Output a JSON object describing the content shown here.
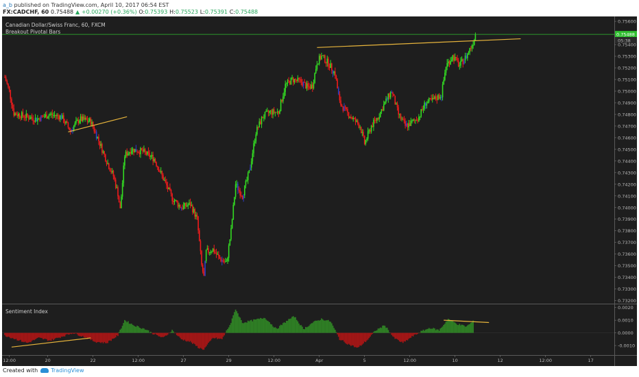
{
  "header": {
    "user": "a_b",
    "published_text": "published on TradingView.com, April 10, 2017 06:54 EST",
    "symbol": "FX:CADCHF, 60",
    "last": "0.75488",
    "change": "+0.00270 (+0.36%)",
    "o_label": "O:",
    "o_value": "0.75393",
    "h_label": "H:",
    "h_value": "0.75523",
    "l_label": "L:",
    "l_value": "0.75391",
    "c_label": "C:",
    "c_value": "0.75488"
  },
  "footer": {
    "created_with": "Created with",
    "brand": "TradingView"
  },
  "colors": {
    "background": "#1e1e1e",
    "bull": "#33dd22",
    "bear": "#ee1c1c",
    "neutral": "#2e3dc8",
    "trendline": "#e8b53c",
    "price_line": "#2fbf2f",
    "hist_pos": "#2e7d24",
    "hist_neg": "#a11616",
    "axis_text": "#b8b8b8"
  },
  "chart_data": [
    {
      "type": "candlestick",
      "title": "Canadian Dollar/Swiss Franc, 60, FXCM",
      "indicator_label": "Breakout Pivotal Bars",
      "ylim": [
        0.7318,
        0.7563
      ],
      "y_ticks": [
        "0.75600",
        "0.75488",
        "0.75400",
        "0.75300",
        "0.75200",
        "0.75100",
        "0.75000",
        "0.74900",
        "0.74800",
        "0.74700",
        "0.74600",
        "0.74500",
        "0.74400",
        "0.74300",
        "0.74200",
        "0.74100",
        "0.74000",
        "0.73900",
        "0.73800",
        "0.73700",
        "0.73600",
        "0.73500",
        "0.73400",
        "0.73300",
        "0.73200"
      ],
      "last_price_tag": "0.75488",
      "countdown_tag": "05:38",
      "current_price": 0.75488,
      "approx_close_path": [
        {
          "t": 0,
          "v": 0.7512
        },
        {
          "t": 2,
          "v": 0.75
        },
        {
          "t": 4,
          "v": 0.7481
        },
        {
          "t": 8,
          "v": 0.7479
        },
        {
          "t": 14,
          "v": 0.7476
        },
        {
          "t": 20,
          "v": 0.748
        },
        {
          "t": 25,
          "v": 0.7478
        },
        {
          "t": 29,
          "v": 0.7466
        },
        {
          "t": 33,
          "v": 0.7476
        },
        {
          "t": 38,
          "v": 0.7474
        },
        {
          "t": 41,
          "v": 0.746
        },
        {
          "t": 45,
          "v": 0.744
        },
        {
          "t": 48,
          "v": 0.7427
        },
        {
          "t": 50,
          "v": 0.7412
        },
        {
          "t": 51,
          "v": 0.7398
        },
        {
          "t": 53,
          "v": 0.7445
        },
        {
          "t": 56,
          "v": 0.745
        },
        {
          "t": 61,
          "v": 0.7448
        },
        {
          "t": 66,
          "v": 0.7442
        },
        {
          "t": 70,
          "v": 0.7425
        },
        {
          "t": 74,
          "v": 0.7408
        },
        {
          "t": 78,
          "v": 0.74
        },
        {
          "t": 82,
          "v": 0.7403
        },
        {
          "t": 85,
          "v": 0.739
        },
        {
          "t": 87,
          "v": 0.735
        },
        {
          "t": 88,
          "v": 0.734
        },
        {
          "t": 89,
          "v": 0.7362
        },
        {
          "t": 92,
          "v": 0.7364
        },
        {
          "t": 95,
          "v": 0.7356
        },
        {
          "t": 98,
          "v": 0.7352
        },
        {
          "t": 100,
          "v": 0.738
        },
        {
          "t": 102,
          "v": 0.742
        },
        {
          "t": 105,
          "v": 0.741
        },
        {
          "t": 108,
          "v": 0.743
        },
        {
          "t": 111,
          "v": 0.7465
        },
        {
          "t": 114,
          "v": 0.7478
        },
        {
          "t": 117,
          "v": 0.7482
        },
        {
          "t": 121,
          "v": 0.7482
        },
        {
          "t": 124,
          "v": 0.7505
        },
        {
          "t": 127,
          "v": 0.751
        },
        {
          "t": 131,
          "v": 0.7508
        },
        {
          "t": 134,
          "v": 0.7503
        },
        {
          "t": 136,
          "v": 0.7505
        },
        {
          "t": 138,
          "v": 0.7525
        },
        {
          "t": 140,
          "v": 0.753
        },
        {
          "t": 143,
          "v": 0.7524
        },
        {
          "t": 146,
          "v": 0.7515
        },
        {
          "t": 148,
          "v": 0.749
        },
        {
          "t": 151,
          "v": 0.7482
        },
        {
          "t": 154,
          "v": 0.7476
        },
        {
          "t": 157,
          "v": 0.747
        },
        {
          "t": 159,
          "v": 0.7455
        },
        {
          "t": 162,
          "v": 0.747
        },
        {
          "t": 165,
          "v": 0.7478
        },
        {
          "t": 168,
          "v": 0.749
        },
        {
          "t": 171,
          "v": 0.75
        },
        {
          "t": 174,
          "v": 0.748
        },
        {
          "t": 177,
          "v": 0.747
        },
        {
          "t": 180,
          "v": 0.7473
        },
        {
          "t": 183,
          "v": 0.7478
        },
        {
          "t": 186,
          "v": 0.749
        },
        {
          "t": 189,
          "v": 0.7492
        },
        {
          "t": 193,
          "v": 0.7497
        },
        {
          "t": 195,
          "v": 0.7522
        },
        {
          "t": 198,
          "v": 0.753
        },
        {
          "t": 201,
          "v": 0.7522
        },
        {
          "t": 204,
          "v": 0.753
        },
        {
          "t": 207,
          "v": 0.7542
        },
        {
          "t": 208,
          "v": 0.75488
        }
      ],
      "trendlines": [
        {
          "from": {
            "t": 28,
            "v": 0.7465
          },
          "to": {
            "t": 54,
            "v": 0.7478
          }
        },
        {
          "from": {
            "t": 138,
            "v": 0.75375
          },
          "to": {
            "t": 228,
            "v": 0.7545
          }
        }
      ]
    },
    {
      "type": "histogram",
      "title": "Sentiment Index",
      "ylim": [
        -0.0017,
        0.0022
      ],
      "y_ticks": [
        "0.0020",
        "0.0010",
        "0.0000",
        "-0.0010"
      ],
      "approx_values": [
        {
          "t": 0,
          "v": -0.0002
        },
        {
          "t": 5,
          "v": -0.0005
        },
        {
          "t": 10,
          "v": -0.0008
        },
        {
          "t": 15,
          "v": -0.0004
        },
        {
          "t": 20,
          "v": -0.0006
        },
        {
          "t": 25,
          "v": -0.0003
        },
        {
          "t": 30,
          "v": 0.0
        },
        {
          "t": 35,
          "v": -0.0003
        },
        {
          "t": 40,
          "v": -0.0007
        },
        {
          "t": 45,
          "v": -0.0008
        },
        {
          "t": 50,
          "v": -0.0002
        },
        {
          "t": 53,
          "v": 0.001
        },
        {
          "t": 57,
          "v": 0.0006
        },
        {
          "t": 62,
          "v": 0.0003
        },
        {
          "t": 66,
          "v": -0.0001
        },
        {
          "t": 70,
          "v": -0.0004
        },
        {
          "t": 74,
          "v": 0.0002
        },
        {
          "t": 78,
          "v": -0.0005
        },
        {
          "t": 82,
          "v": -0.0007
        },
        {
          "t": 86,
          "v": -0.0012
        },
        {
          "t": 88,
          "v": -0.0013
        },
        {
          "t": 92,
          "v": -0.0004
        },
        {
          "t": 96,
          "v": -0.0005
        },
        {
          "t": 100,
          "v": 0.0008
        },
        {
          "t": 102,
          "v": 0.0019
        },
        {
          "t": 105,
          "v": 0.0008
        },
        {
          "t": 110,
          "v": 0.001
        },
        {
          "t": 115,
          "v": 0.0012
        },
        {
          "t": 120,
          "v": 0.0003
        },
        {
          "t": 125,
          "v": 0.001
        },
        {
          "t": 128,
          "v": 0.0013
        },
        {
          "t": 132,
          "v": 0.0003
        },
        {
          "t": 136,
          "v": 0.0008
        },
        {
          "t": 140,
          "v": 0.0011
        },
        {
          "t": 144,
          "v": 0.0009
        },
        {
          "t": 148,
          "v": -0.0005
        },
        {
          "t": 152,
          "v": -0.0009
        },
        {
          "t": 156,
          "v": -0.0012
        },
        {
          "t": 160,
          "v": -0.0006
        },
        {
          "t": 164,
          "v": 0.0002
        },
        {
          "t": 168,
          "v": 0.0006
        },
        {
          "t": 172,
          "v": -0.0004
        },
        {
          "t": 176,
          "v": -0.0008
        },
        {
          "t": 180,
          "v": -0.0003
        },
        {
          "t": 184,
          "v": 0.0001
        },
        {
          "t": 188,
          "v": 0.0004
        },
        {
          "t": 192,
          "v": 0.0002
        },
        {
          "t": 196,
          "v": 0.0011
        },
        {
          "t": 200,
          "v": 0.0007
        },
        {
          "t": 204,
          "v": 0.0005
        },
        {
          "t": 207,
          "v": 0.0009
        }
      ],
      "trendlines": [
        {
          "from": {
            "t": 3,
            "v": -0.00112
          },
          "to": {
            "t": 38,
            "v": -0.0004
          }
        },
        {
          "from": {
            "t": 194,
            "v": 0.001
          },
          "to": {
            "t": 214,
            "v": 0.00082
          }
        }
      ]
    }
  ],
  "x_axis": {
    "labels": [
      {
        "t": 2,
        "text": "12:00"
      },
      {
        "t": 19,
        "text": "20"
      },
      {
        "t": 39,
        "text": "22"
      },
      {
        "t": 59,
        "text": "12:00"
      },
      {
        "t": 79,
        "text": "27"
      },
      {
        "t": 99,
        "text": "29"
      },
      {
        "t": 119,
        "text": "12:00"
      },
      {
        "t": 139,
        "text": "Apr"
      },
      {
        "t": 159,
        "text": "5"
      },
      {
        "t": 179,
        "text": "12:00"
      },
      {
        "t": 199,
        "text": "10"
      },
      {
        "t": 219,
        "text": "12"
      },
      {
        "t": 239,
        "text": "12:00"
      },
      {
        "t": 259,
        "text": "17"
      }
    ]
  }
}
